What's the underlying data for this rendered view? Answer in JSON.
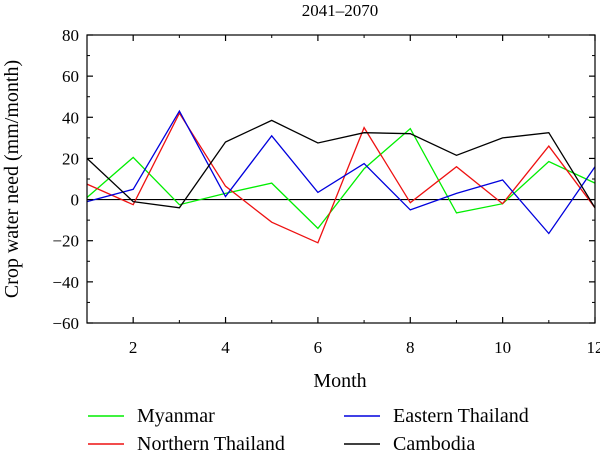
{
  "chart_data": {
    "type": "line",
    "title": "2041–2070",
    "xlabel": "Month",
    "ylabel": "Crop water need (mm/month)",
    "xlim": [
      1,
      12
    ],
    "ylim": [
      -60,
      80
    ],
    "x_ticks": [
      2,
      4,
      6,
      8,
      10,
      12
    ],
    "y_ticks": [
      -60,
      -40,
      -20,
      0,
      20,
      40,
      60,
      80
    ],
    "x_tick_labels": [
      "2",
      "4",
      "6",
      "8",
      "10",
      "12"
    ],
    "y_tick_labels": [
      "−60",
      "−40",
      "−20",
      "0",
      "20",
      "40",
      "60",
      "80"
    ],
    "zero_line": true,
    "grid": false,
    "legend_position": "below plot, two columns",
    "x": [
      1,
      2,
      3,
      4,
      5,
      6,
      7,
      8,
      9,
      10,
      11,
      12
    ],
    "series": [
      {
        "name": "Myanmar",
        "color": "#00ee00",
        "values": [
          1,
          20.5,
          -2.5,
          3,
          8,
          -14,
          15,
          34.5,
          -6.5,
          -2,
          18.5,
          8
        ]
      },
      {
        "name": "Northern Thailand",
        "color": "#ee1111",
        "values": [
          7.5,
          -2.5,
          42,
          6.5,
          -11,
          -21,
          35,
          -1.5,
          16,
          -2,
          26,
          -4
        ]
      },
      {
        "name": "Eastern Thailand",
        "color": "#0000dd",
        "values": [
          -1,
          5,
          43,
          1.5,
          31,
          3.5,
          17.5,
          -5,
          3,
          9.5,
          -16.5,
          16
        ]
      },
      {
        "name": "Cambodia",
        "color": "#000000",
        "values": [
          20,
          -1,
          -4,
          28,
          38.5,
          27.5,
          32.5,
          32,
          21.5,
          30,
          32.5,
          -4
        ]
      }
    ]
  }
}
